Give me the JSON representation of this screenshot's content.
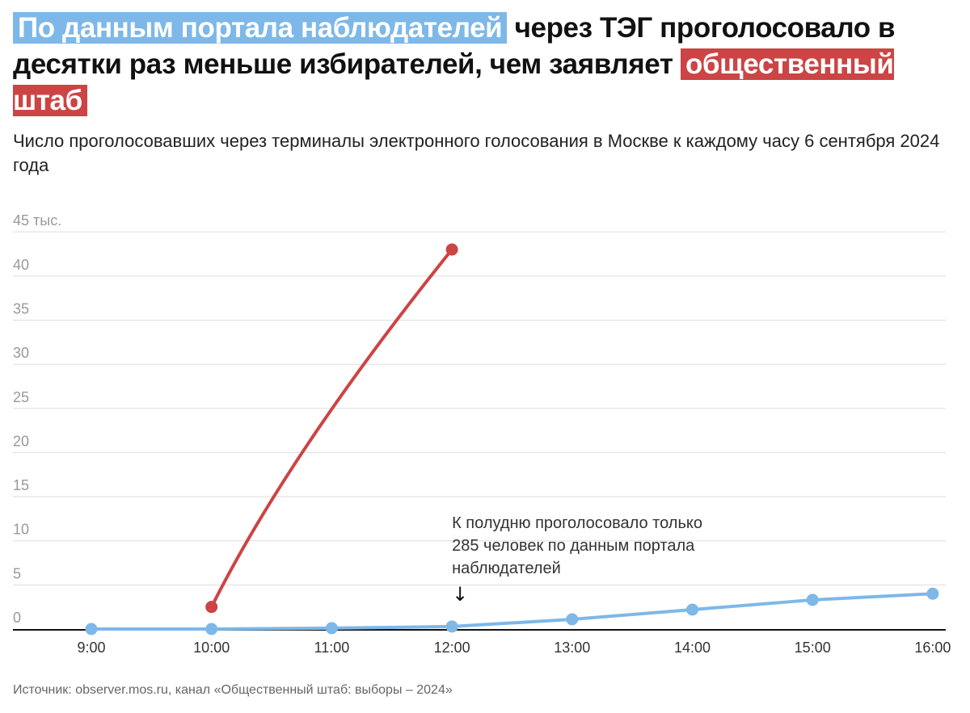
{
  "title": {
    "part1_highlight_blue": "По данным портала наблюдателей",
    "part2": " через ТЭГ проголосовало в десятки раз меньше избирателей, чем заявляет ",
    "part3_highlight_red": "общественный штаб"
  },
  "subtitle": "Число проголосовавших через терминалы электронного голосования в Москве к каждому часу 6 сентября 2024 года",
  "source": "Источник: observer.mos.ru, канал «Общественный штаб: выборы – 2024»",
  "chart_data": {
    "type": "line",
    "categories": [
      "9:00",
      "10:00",
      "11:00",
      "12:00",
      "13:00",
      "14:00",
      "15:00",
      "16:00"
    ],
    "y_ticks": [
      0,
      5,
      10,
      15,
      20,
      25,
      30,
      35,
      40,
      45
    ],
    "y_tick_labels": [
      "0",
      "5",
      "10",
      "15",
      "20",
      "25",
      "30",
      "35",
      "40",
      "45 тыс."
    ],
    "ylim": [
      0,
      45
    ],
    "grid": true,
    "series": [
      {
        "color": "#cc4444",
        "points": [
          {
            "x": "10:00",
            "y": 2.5
          },
          {
            "x": "12:00",
            "y": 43
          }
        ]
      },
      {
        "color": "#7db8e8",
        "points": [
          {
            "x": "9:00",
            "y": 0
          },
          {
            "x": "10:00",
            "y": 0
          },
          {
            "x": "11:00",
            "y": 0.1
          },
          {
            "x": "12:00",
            "y": 0.285
          },
          {
            "x": "13:00",
            "y": 1.1
          },
          {
            "x": "14:00",
            "y": 2.2
          },
          {
            "x": "15:00",
            "y": 3.3
          },
          {
            "x": "16:00",
            "y": 4.0
          }
        ]
      }
    ],
    "annotation": {
      "lines": [
        "К полудню проголосовало только",
        "285 человек по данным портала",
        "наблюдателей"
      ],
      "arrow": "↓",
      "x": "12:00"
    }
  }
}
